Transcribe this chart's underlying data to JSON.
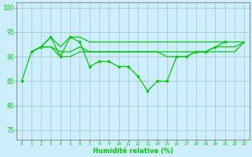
{
  "xlabel": "Humidité relative (%)",
  "background_color": "#cceeff",
  "grid_color": "#aacccc",
  "line_color": "#00cc00",
  "spine_color": "#888888",
  "ylim": [
    73,
    101
  ],
  "xlim": [
    -0.5,
    23.5
  ],
  "yticks": [
    75,
    80,
    85,
    90,
    95,
    100
  ],
  "xtick_labels": [
    "0",
    "1",
    "2",
    "3",
    "4",
    "5",
    "6",
    "7",
    "8",
    "9",
    "10",
    "11",
    "12",
    "13",
    "14",
    "15",
    "16",
    "17",
    "18",
    "19",
    "20",
    "21",
    "22",
    "23"
  ],
  "s1_x": [
    0,
    1,
    2,
    3,
    4,
    5,
    6,
    7,
    8,
    9,
    10,
    11,
    12,
    13,
    14,
    15,
    16,
    17,
    18,
    19,
    20,
    21,
    22,
    23
  ],
  "s1_y": [
    85,
    91,
    92,
    94,
    90,
    94,
    93,
    88,
    89,
    89,
    88,
    88,
    86,
    83,
    85,
    85,
    90,
    90,
    91,
    91,
    92,
    93,
    null,
    null
  ],
  "s2_x": [
    1,
    2,
    3,
    4,
    5,
    6,
    7,
    8,
    9,
    10,
    11,
    12,
    13,
    14,
    15,
    16,
    17,
    18,
    19,
    20,
    21,
    22,
    23
  ],
  "s2_y": [
    91,
    92,
    92,
    90,
    90,
    91,
    91,
    91,
    91,
    91,
    91,
    91,
    91,
    91,
    90,
    90,
    90,
    91,
    91,
    92,
    92,
    92,
    93
  ],
  "s3_x": [
    1,
    2,
    3,
    4,
    5,
    6,
    7,
    8,
    9,
    10,
    11,
    12,
    13,
    14,
    15,
    16,
    17,
    18,
    19,
    20,
    21,
    22,
    23
  ],
  "s3_y": [
    91,
    92,
    92,
    91,
    91,
    92,
    91,
    91,
    91,
    91,
    91,
    91,
    91,
    91,
    91,
    91,
    91,
    91,
    91,
    91,
    91,
    91,
    93
  ],
  "s4_x": [
    1,
    2,
    3,
    4,
    5,
    6,
    7,
    8,
    9,
    10,
    11,
    12,
    13,
    14,
    15,
    16,
    17,
    18,
    19,
    20,
    21,
    22,
    23
  ],
  "s4_y": [
    91,
    92,
    94,
    92,
    94,
    94,
    93,
    93,
    93,
    93,
    93,
    93,
    93,
    93,
    93,
    93,
    93,
    93,
    93,
    93,
    93,
    93,
    93
  ]
}
